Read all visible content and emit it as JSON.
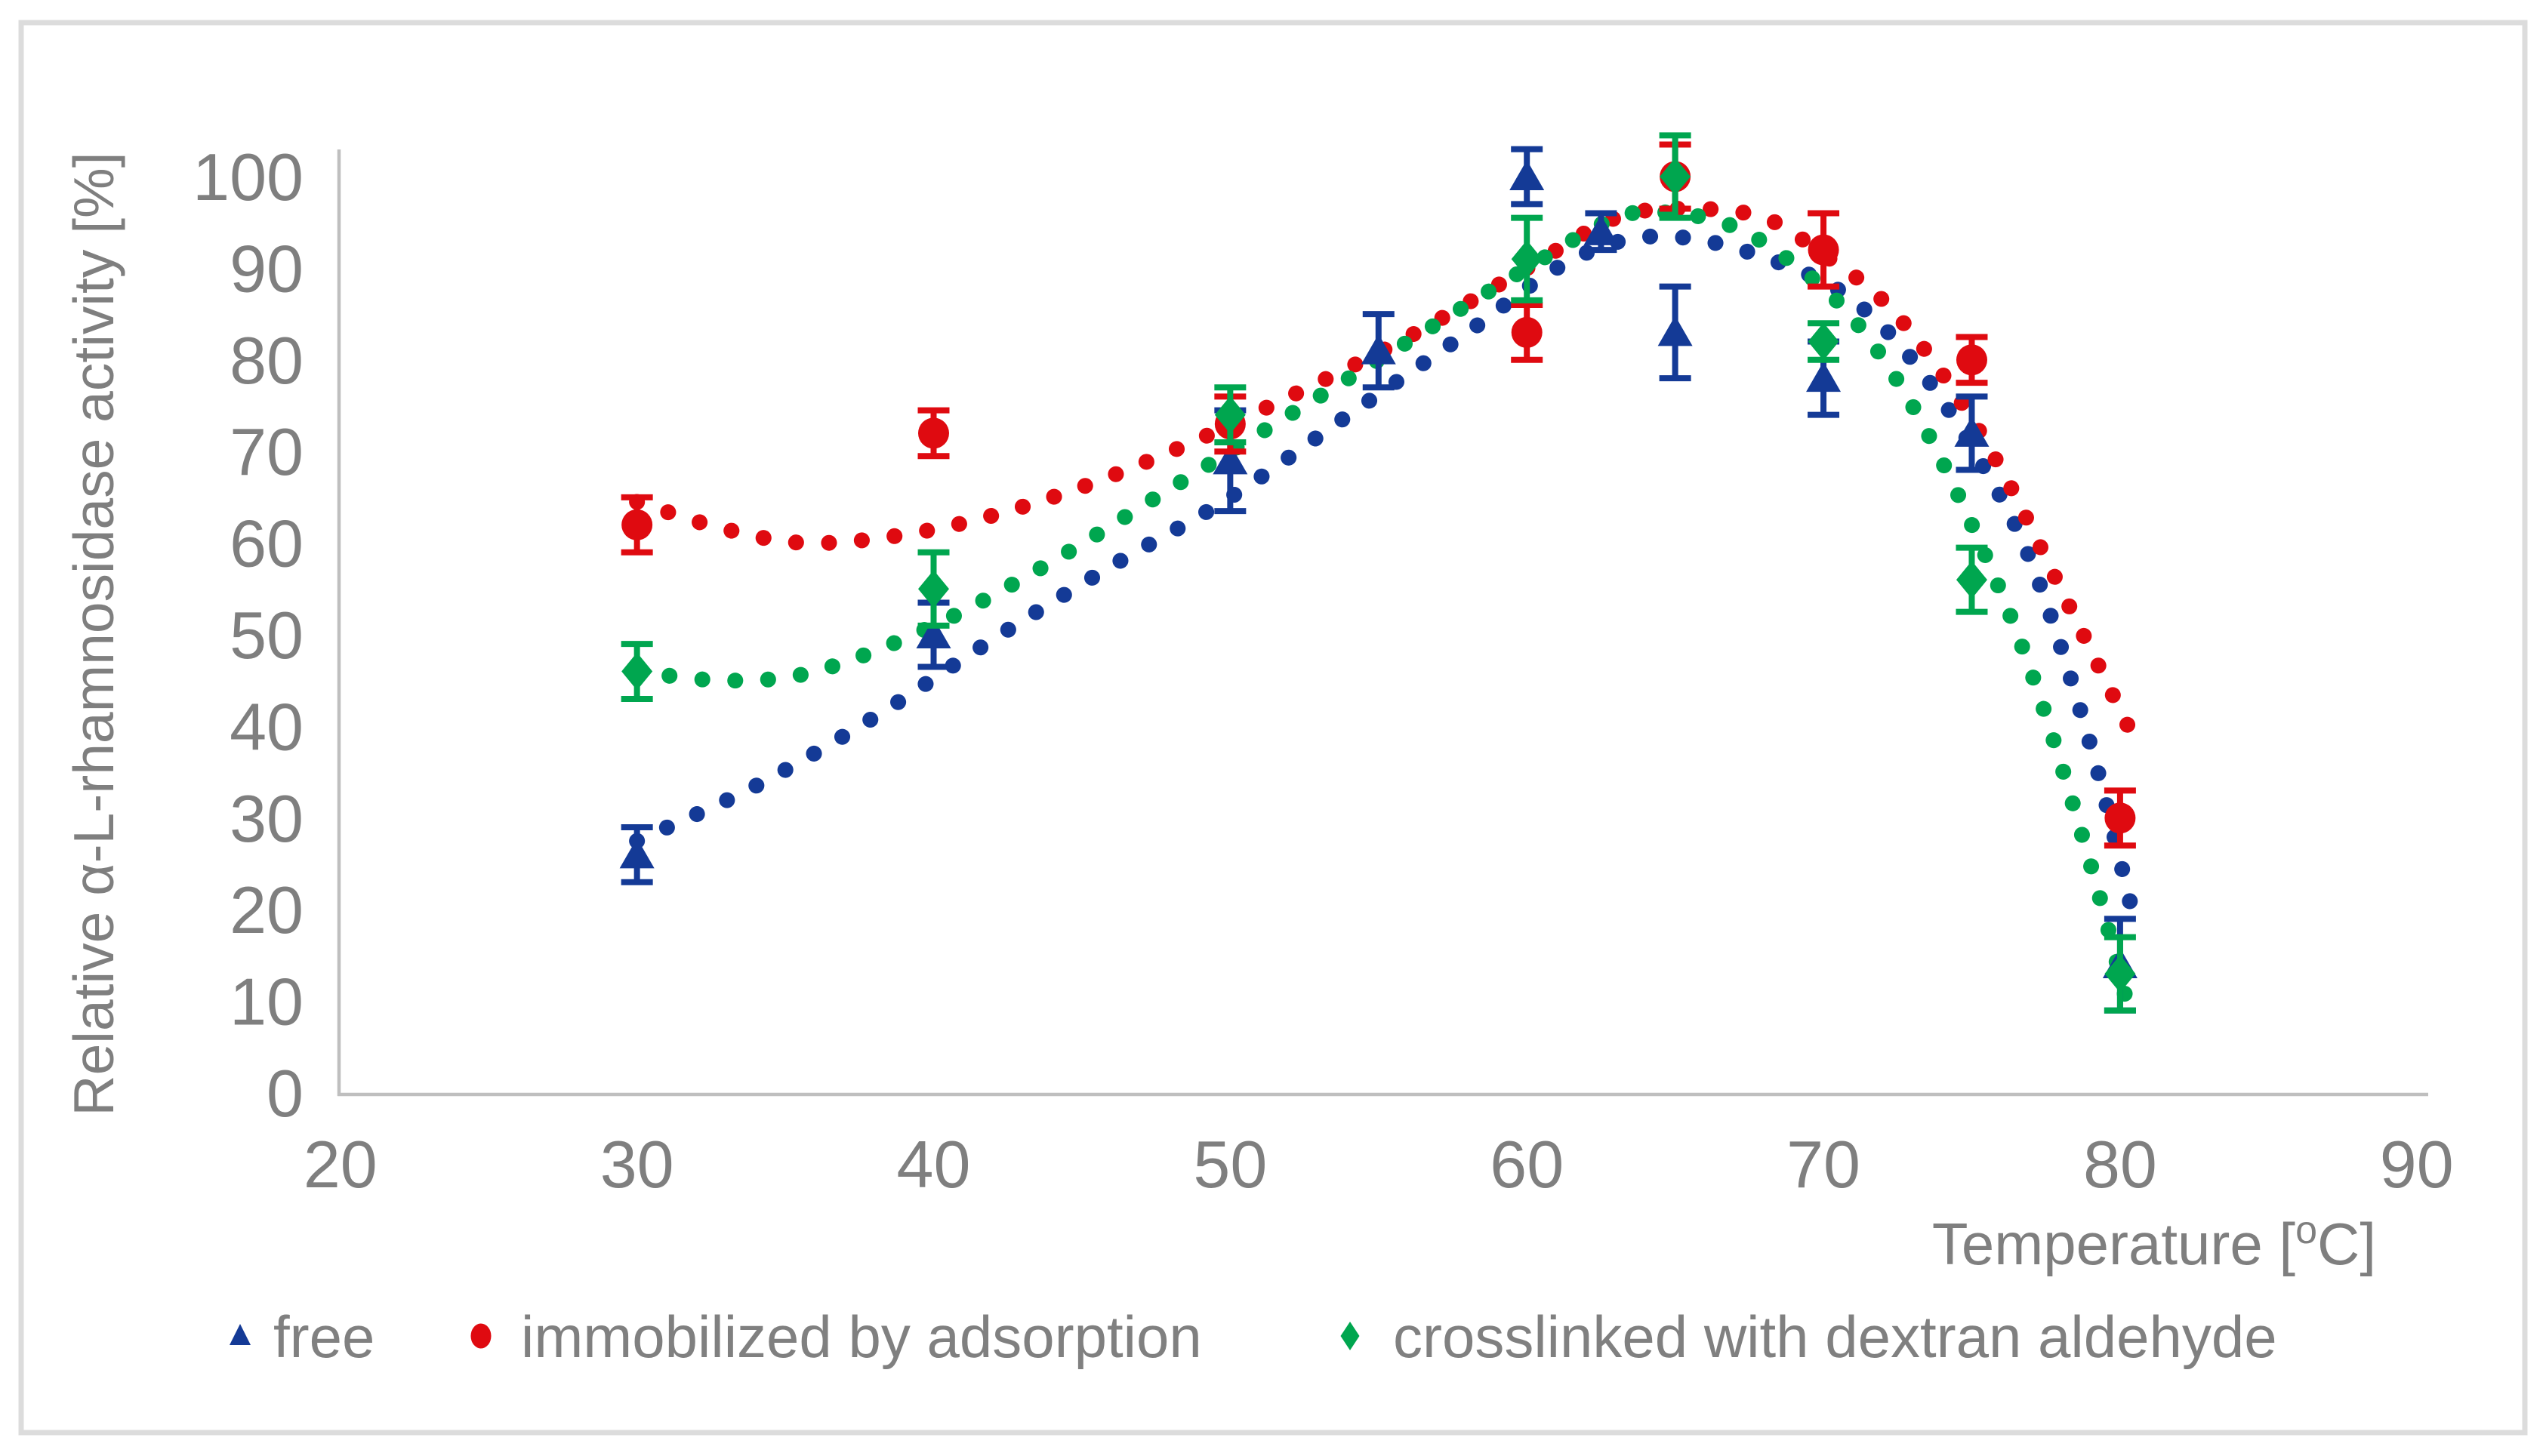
{
  "page": {
    "background": "#ffffff",
    "border_color": "#dcdcdc"
  },
  "axis": {
    "line_color": "#bfbfbf",
    "tick_text_color": "#7f7f7f",
    "x_title_main": "Temperature [",
    "x_title_sup": "o",
    "x_title_end": "C]",
    "y_title": "Relative α-L-rhamnosidase activity [%]"
  },
  "chart_data": {
    "type": "scatter",
    "title": "",
    "xlabel": "Temperature [°C]",
    "ylabel": "Relative α-L-rhamnosidase activity [%]",
    "xlim": [
      20,
      90
    ],
    "ylim": [
      0,
      100
    ],
    "x_ticks": [
      20,
      30,
      40,
      50,
      60,
      70,
      80,
      90
    ],
    "y_ticks": [
      0,
      10,
      20,
      30,
      40,
      50,
      60,
      70,
      80,
      90,
      100
    ],
    "grid": false,
    "legend_position": "bottom",
    "series": [
      {
        "name": "free",
        "marker": "triangle",
        "color": "#143a96",
        "points": [
          {
            "x": 30,
            "y": 26,
            "err": 3
          },
          {
            "x": 40,
            "y": 50,
            "err": 3.5
          },
          {
            "x": 50,
            "y": 69,
            "err": 5.5
          },
          {
            "x": 55,
            "y": 81,
            "err": 4
          },
          {
            "x": 60,
            "y": 100,
            "err": 3
          },
          {
            "x": 62.5,
            "y": 94,
            "err": 2
          },
          {
            "x": 65,
            "y": 83,
            "err": 5
          },
          {
            "x": 70,
            "y": 78,
            "err": 4
          },
          {
            "x": 75,
            "y": 72,
            "err": 4
          },
          {
            "x": 80,
            "y": 14,
            "err": 5
          }
        ],
        "trend": [
          [
            30,
            27.5
          ],
          [
            34,
            33.5
          ],
          [
            38,
            41
          ],
          [
            42,
            49.5
          ],
          [
            46,
            57.5
          ],
          [
            50,
            65
          ],
          [
            54,
            74
          ],
          [
            58,
            83
          ],
          [
            61,
            90
          ],
          [
            63.5,
            93.2
          ],
          [
            66,
            93
          ],
          [
            69,
            90
          ],
          [
            71,
            86.5
          ],
          [
            73,
            80
          ],
          [
            75,
            70.5
          ],
          [
            77,
            58
          ],
          [
            79,
            38
          ],
          [
            80.4,
            20
          ]
        ]
      },
      {
        "name": "immobilized by adsorption",
        "marker": "circle",
        "color": "#df0a10",
        "points": [
          {
            "x": 30,
            "y": 62,
            "err": 3
          },
          {
            "x": 40,
            "y": 72,
            "err": 2.5
          },
          {
            "x": 50,
            "y": 73,
            "err": 3
          },
          {
            "x": 60,
            "y": 83,
            "err": 3
          },
          {
            "x": 65,
            "y": 100,
            "err": 3.5
          },
          {
            "x": 70,
            "y": 92,
            "err": 4
          },
          {
            "x": 75,
            "y": 80,
            "err": 2.5
          },
          {
            "x": 80,
            "y": 30,
            "err": 3
          }
        ],
        "trend": [
          [
            30,
            64.5
          ],
          [
            33,
            61.5
          ],
          [
            36,
            60
          ],
          [
            40,
            61.5
          ],
          [
            44,
            65
          ],
          [
            48,
            70
          ],
          [
            52,
            76
          ],
          [
            56,
            82.5
          ],
          [
            60,
            90
          ],
          [
            63,
            95.5
          ],
          [
            65.5,
            96.5
          ],
          [
            68,
            95.5
          ],
          [
            70,
            91.5
          ],
          [
            72,
            86.5
          ],
          [
            74,
            78.5
          ],
          [
            76,
            68
          ],
          [
            78,
            55
          ],
          [
            80.5,
            38.5
          ]
        ]
      },
      {
        "name": "crosslinked with dextran aldehyde",
        "marker": "diamond",
        "color": "#00a64f",
        "points": [
          {
            "x": 30,
            "y": 46,
            "err": 3
          },
          {
            "x": 40,
            "y": 55,
            "err": 4
          },
          {
            "x": 50,
            "y": 74,
            "err": 3
          },
          {
            "x": 60,
            "y": 91,
            "err": 4.5
          },
          {
            "x": 65,
            "y": 100,
            "err": 4.5
          },
          {
            "x": 70,
            "y": 82,
            "err": 2
          },
          {
            "x": 75,
            "y": 56,
            "err": 3.5
          },
          {
            "x": 80,
            "y": 13,
            "err": 4
          }
        ],
        "trend": [
          [
            30,
            46
          ],
          [
            33,
            45
          ],
          [
            36,
            46
          ],
          [
            40,
            51
          ],
          [
            44,
            58
          ],
          [
            48,
            66
          ],
          [
            52,
            74
          ],
          [
            56,
            82
          ],
          [
            60,
            90
          ],
          [
            63,
            95.5
          ],
          [
            65,
            96
          ],
          [
            67,
            94.5
          ],
          [
            69,
            90.5
          ],
          [
            71,
            84.5
          ],
          [
            73,
            75
          ],
          [
            75,
            62
          ],
          [
            77,
            46
          ],
          [
            79,
            25
          ],
          [
            80.3,
            9
          ]
        ]
      }
    ]
  }
}
